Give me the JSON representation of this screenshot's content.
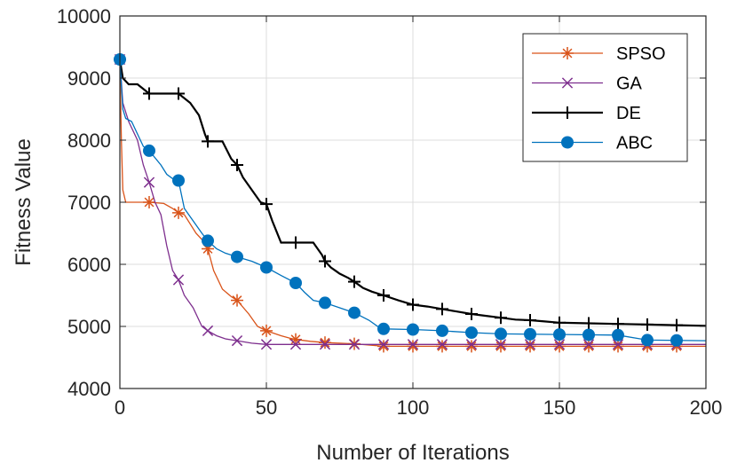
{
  "chart_data": {
    "type": "line",
    "title": "",
    "xlabel": "Number of Iterations",
    "ylabel": "Fitness Value",
    "xlim": [
      0,
      200
    ],
    "ylim": [
      4000,
      10000
    ],
    "xticks": [
      0,
      50,
      100,
      150,
      200
    ],
    "yticks": [
      4000,
      5000,
      6000,
      7000,
      8000,
      9000,
      10000
    ],
    "grid": true,
    "legend_position": "top-right",
    "series": [
      {
        "name": "SPSO",
        "color": "#d95319",
        "marker": "asterisk",
        "x": [
          0,
          0.5,
          1,
          2,
          10,
          15,
          18,
          20,
          22,
          26,
          28,
          30,
          32,
          35,
          38,
          40,
          44,
          47,
          50,
          55,
          58,
          60,
          65,
          70,
          75,
          80,
          85,
          90,
          200
        ],
        "y": [
          9300,
          8000,
          7200,
          7000,
          7000,
          6980,
          6900,
          6830,
          6800,
          6500,
          6400,
          6250,
          5900,
          5600,
          5480,
          5420,
          5200,
          5000,
          4930,
          4850,
          4810,
          4790,
          4760,
          4740,
          4730,
          4720,
          4700,
          4680,
          4680
        ],
        "marker_x": [
          0,
          10,
          20,
          30,
          40,
          50,
          60,
          70,
          80,
          90,
          100,
          110,
          120,
          130,
          140,
          150,
          160,
          170,
          180,
          190
        ]
      },
      {
        "name": "GA",
        "color": "#7e2f8e",
        "marker": "x",
        "x": [
          0,
          1,
          3,
          6,
          8,
          10,
          12,
          14,
          16,
          18,
          20,
          22,
          25,
          28,
          30,
          33,
          36,
          40,
          45,
          50,
          200
        ],
        "y": [
          9300,
          8600,
          8300,
          8000,
          7600,
          7320,
          7000,
          6800,
          6300,
          5900,
          5750,
          5500,
          5300,
          5000,
          4930,
          4850,
          4800,
          4770,
          4730,
          4710,
          4710
        ],
        "marker_x": [
          0,
          10,
          20,
          30,
          40,
          50,
          60,
          70,
          80,
          90,
          100,
          110,
          120,
          130,
          140,
          150,
          160,
          170,
          180,
          190
        ]
      },
      {
        "name": "DE",
        "color": "#000000",
        "marker": "plus",
        "x": [
          0,
          1,
          3,
          6,
          10,
          15,
          20,
          24,
          27,
          29,
          30,
          35,
          38,
          40,
          42,
          45,
          48,
          50,
          52,
          55,
          60,
          66,
          69,
          70,
          72,
          75,
          78,
          80,
          83,
          86,
          90,
          95,
          100,
          105,
          110,
          115,
          120,
          125,
          130,
          135,
          140,
          145,
          150,
          160,
          170,
          180,
          190,
          200
        ],
        "y": [
          9300,
          9000,
          8900,
          8900,
          8750,
          8750,
          8750,
          8600,
          8400,
          8100,
          7980,
          7980,
          7700,
          7600,
          7400,
          7200,
          7000,
          6970,
          6700,
          6350,
          6350,
          6350,
          6150,
          6050,
          5950,
          5850,
          5780,
          5720,
          5620,
          5560,
          5500,
          5420,
          5350,
          5320,
          5280,
          5240,
          5200,
          5170,
          5140,
          5110,
          5100,
          5080,
          5060,
          5050,
          5040,
          5030,
          5020,
          5010
        ],
        "marker_x": [
          0,
          10,
          20,
          30,
          40,
          50,
          60,
          70,
          80,
          90,
          100,
          110,
          120,
          130,
          140,
          150,
          160,
          170,
          180,
          190
        ]
      },
      {
        "name": "ABC",
        "color": "#0072bd",
        "marker": "circle",
        "x": [
          0,
          1,
          2,
          4,
          6,
          8,
          10,
          14,
          16,
          18,
          20,
          22,
          25,
          28,
          30,
          33,
          36,
          40,
          45,
          50,
          55,
          60,
          63,
          66,
          70,
          75,
          80,
          85,
          88,
          90,
          100,
          110,
          120,
          130,
          150,
          170,
          180,
          200
        ],
        "y": [
          9300,
          8500,
          8350,
          8300,
          8100,
          7900,
          7830,
          7600,
          7450,
          7380,
          7350,
          6900,
          6700,
          6500,
          6380,
          6250,
          6180,
          6120,
          6050,
          5950,
          5820,
          5700,
          5550,
          5420,
          5380,
          5300,
          5220,
          5100,
          5000,
          4960,
          4950,
          4930,
          4900,
          4880,
          4870,
          4860,
          4780,
          4770
        ],
        "marker_x": [
          0,
          10,
          20,
          30,
          40,
          50,
          60,
          70,
          80,
          90,
          100,
          110,
          120,
          130,
          140,
          150,
          160,
          170,
          180,
          190
        ]
      }
    ]
  }
}
